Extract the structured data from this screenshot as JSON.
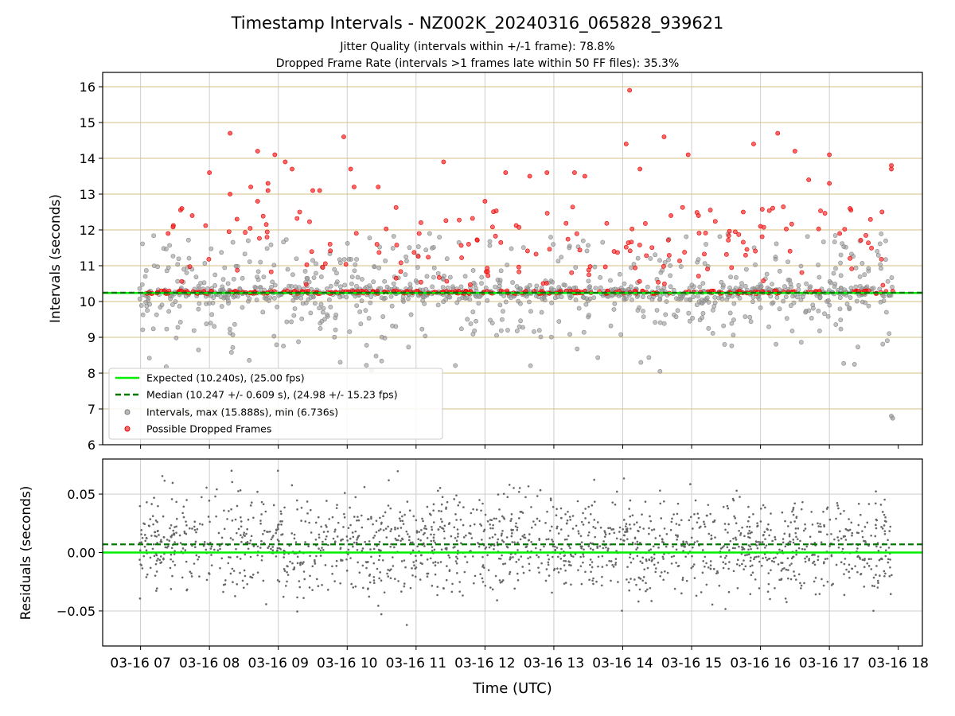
{
  "title": "Timestamp Intervals - NZ002K_20240316_065828_939621",
  "subtitle_1": "Jitter Quality (intervals within +/-1 frame): 78.8%",
  "subtitle_2": "Dropped Frame Rate (intervals >1 frames late within 50 FF files): 35.3%",
  "colors": {
    "expected": "#00ee00",
    "median": "#007700",
    "intervals": "#999999",
    "dropped": "#ff2222",
    "residuals": "#666666",
    "gridline_top": "#d4bf80",
    "gridline_bottom": "#cccccc"
  },
  "chart_data": [
    {
      "type": "scatter",
      "ylabel": "Intervals (seconds)",
      "ylim": [
        6,
        16.4
      ],
      "yticks": [
        "6",
        "7",
        "8",
        "9",
        "10",
        "11",
        "12",
        "13",
        "14",
        "15",
        "16"
      ],
      "xlim_hours_utc": [
        6.45,
        18.35
      ],
      "grid": true,
      "legend_placement": "lower-left",
      "legend": [
        "Expected (10.240s), (25.00 fps)",
        "Median (10.247 +/- 0.609 s), (24.98 +/- 15.23 fps)",
        "Intervals, max (15.888s), min (6.736s)",
        "Possible Dropped Frames"
      ],
      "expected_value": 10.24,
      "median_value": 10.247,
      "interval_max": 15.888,
      "interval_min": 6.736,
      "series": [
        {
          "name": "Possible Dropped Frames",
          "points_hours_seconds": [
            [
              7.4,
              11.9
            ],
            [
              7.6,
              12.6
            ],
            [
              7.75,
              12.4
            ],
            [
              8.0,
              13.6
            ],
            [
              8.3,
              13.0
            ],
            [
              8.3,
              14.7
            ],
            [
              8.4,
              12.3
            ],
            [
              8.6,
              13.2
            ],
            [
              8.7,
              14.2
            ],
            [
              8.7,
              12.8
            ],
            [
              8.85,
              13.3
            ],
            [
              8.85,
              13.1
            ],
            [
              8.95,
              14.1
            ],
            [
              9.1,
              13.9
            ],
            [
              9.2,
              13.7
            ],
            [
              9.5,
              13.1
            ],
            [
              9.6,
              13.1
            ],
            [
              9.95,
              14.6
            ],
            [
              10.05,
              13.7
            ],
            [
              10.1,
              13.2
            ],
            [
              10.45,
              13.2
            ],
            [
              11.4,
              13.9
            ],
            [
              12.0,
              12.8
            ],
            [
              12.3,
              13.6
            ],
            [
              12.65,
              13.5
            ],
            [
              12.9,
              13.6
            ],
            [
              13.3,
              13.6
            ],
            [
              13.45,
              13.5
            ],
            [
              14.1,
              15.9
            ],
            [
              14.05,
              14.4
            ],
            [
              14.25,
              13.7
            ],
            [
              14.6,
              14.6
            ],
            [
              14.7,
              12.4
            ],
            [
              14.95,
              14.1
            ],
            [
              15.1,
              12.4
            ],
            [
              15.75,
              12.5
            ],
            [
              15.9,
              14.4
            ],
            [
              16.0,
              12.1
            ],
            [
              16.25,
              14.7
            ],
            [
              16.5,
              14.2
            ],
            [
              16.7,
              13.4
            ],
            [
              17.0,
              14.1
            ],
            [
              17.0,
              13.3
            ],
            [
              17.15,
              11.9
            ],
            [
              17.3,
              12.6
            ],
            [
              17.9,
              13.8
            ],
            [
              17.9,
              13.7
            ]
          ]
        },
        {
          "name": "Intervals, max (15.888s), min (6.736s)",
          "points_hours_seconds": [
            [
              17.9,
              6.8
            ],
            [
              17.92,
              6.74
            ]
          ]
        }
      ]
    },
    {
      "type": "scatter",
      "xlabel": "Time (UTC)",
      "ylabel": "Residuals (seconds)",
      "ylim": [
        -0.08,
        0.08
      ],
      "yticks": [
        "−0.05",
        "0.00",
        "0.05"
      ],
      "xticks": [
        "03-16 07",
        "03-16 08",
        "03-16 09",
        "03-16 10",
        "03-16 11",
        "03-16 12",
        "03-16 13",
        "03-16 14",
        "03-16 15",
        "03-16 16",
        "03-16 17",
        "03-16 18"
      ],
      "grid": true,
      "expected_residual": 0.0,
      "median_residual": 0.007
    }
  ]
}
